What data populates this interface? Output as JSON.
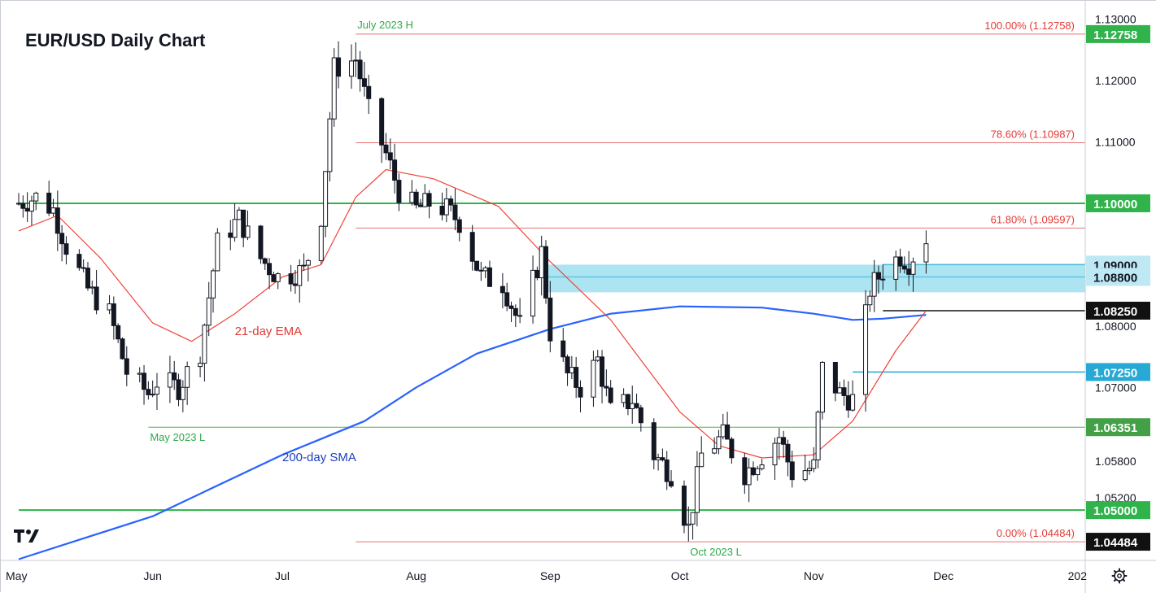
{
  "chart_data": {
    "type": "candlestick",
    "title": "EUR/USD Daily Chart",
    "ylim": [
      1.0418,
      1.133
    ],
    "y_ticks": [
      "1.13000",
      "1.12000",
      "1.11000",
      "1.08000",
      "1.07000",
      "1.05800",
      "1.05200"
    ],
    "x_ticks": [
      {
        "label": "May",
        "date": "2023-05-01"
      },
      {
        "label": "Jun",
        "date": "2023-06-01"
      },
      {
        "label": "Jul",
        "date": "2023-07-01"
      },
      {
        "label": "Aug",
        "date": "2023-08-01"
      },
      {
        "label": "Sep",
        "date": "2023-09-01"
      },
      {
        "label": "Oct",
        "date": "2023-10-01"
      },
      {
        "label": "Nov",
        "date": "2023-11-01"
      },
      {
        "label": "Dec",
        "date": "2023-12-01"
      },
      {
        "label": "202",
        "date": "2024-01-01"
      }
    ],
    "x_range": [
      "2023-05-01",
      "2023-12-31"
    ],
    "candles": [],
    "sma200": [
      {
        "date": "2023-05-01",
        "value": 1.042
      },
      {
        "date": "2023-06-01",
        "value": 1.049
      },
      {
        "date": "2023-07-01",
        "value": 1.059
      },
      {
        "date": "2023-07-20",
        "value": 1.0645
      },
      {
        "date": "2023-08-01",
        "value": 1.07
      },
      {
        "date": "2023-08-15",
        "value": 1.0755
      },
      {
        "date": "2023-09-01",
        "value": 1.0795
      },
      {
        "date": "2023-09-15",
        "value": 1.082
      },
      {
        "date": "2023-10-01",
        "value": 1.0832
      },
      {
        "date": "2023-10-20",
        "value": 1.083
      },
      {
        "date": "2023-11-01",
        "value": 1.082
      },
      {
        "date": "2023-11-10",
        "value": 1.081
      },
      {
        "date": "2023-11-17",
        "value": 1.0812
      },
      {
        "date": "2023-11-27",
        "value": 1.0818
      }
    ],
    "ema21": [
      {
        "date": "2023-05-01",
        "value": 1.0955
      },
      {
        "date": "2023-05-10",
        "value": 1.098
      },
      {
        "date": "2023-05-20",
        "value": 1.091
      },
      {
        "date": "2023-06-01",
        "value": 1.0805
      },
      {
        "date": "2023-06-10",
        "value": 1.0775
      },
      {
        "date": "2023-06-20",
        "value": 1.082
      },
      {
        "date": "2023-07-01",
        "value": 1.088
      },
      {
        "date": "2023-07-10",
        "value": 1.09
      },
      {
        "date": "2023-07-18",
        "value": 1.101
      },
      {
        "date": "2023-07-25",
        "value": 1.1055
      },
      {
        "date": "2023-08-05",
        "value": 1.104
      },
      {
        "date": "2023-08-20",
        "value": 1.0995
      },
      {
        "date": "2023-09-01",
        "value": 1.0905
      },
      {
        "date": "2023-09-15",
        "value": 1.081
      },
      {
        "date": "2023-10-01",
        "value": 1.066
      },
      {
        "date": "2023-10-10",
        "value": 1.0605
      },
      {
        "date": "2023-10-20",
        "value": 1.0585
      },
      {
        "date": "2023-11-01",
        "value": 1.059
      },
      {
        "date": "2023-11-10",
        "value": 1.0645
      },
      {
        "date": "2023-11-20",
        "value": 1.076
      },
      {
        "date": "2023-11-27",
        "value": 1.0825
      }
    ],
    "levels": [
      {
        "name": "100.00% (1.12758)",
        "value": 1.12758,
        "badge": "1.12758",
        "kind": "fib",
        "from": "2023-07-18"
      },
      {
        "name": "78.60% (1.10987)",
        "value": 1.10987,
        "badge": "",
        "kind": "fib",
        "from": "2023-07-18"
      },
      {
        "name": "",
        "value": 1.1,
        "badge": "1.10000",
        "kind": "green-bold",
        "from": "2023-05-01"
      },
      {
        "name": "61.80% (1.09597)",
        "value": 1.09597,
        "badge": "",
        "kind": "fib",
        "from": "2023-07-18"
      },
      {
        "name": "",
        "value": 1.09,
        "badge": "1.09000",
        "kind": "cyan-zone-top",
        "from": "2023-11-17"
      },
      {
        "name": "",
        "value": 1.088,
        "badge": "1.08800",
        "kind": "cyan-mid",
        "from": "2023-08-31"
      },
      {
        "name": "",
        "value": 1.0825,
        "badge": "1.08250",
        "kind": "black",
        "from": "2023-11-17"
      },
      {
        "name": "",
        "value": 1.0725,
        "badge": "1.07250",
        "kind": "cyan",
        "from": "2023-11-10"
      },
      {
        "name": "",
        "value": 1.06351,
        "badge": "1.06351",
        "kind": "green",
        "from": "2023-05-31"
      },
      {
        "name": "",
        "value": 1.05,
        "badge": "1.05000",
        "kind": "green-bold",
        "from": "2023-05-01"
      },
      {
        "name": "0.00% (1.04484)",
        "value": 1.04484,
        "badge": "1.04484",
        "kind": "fib",
        "from": "2023-07-18"
      }
    ],
    "zone": {
      "from_date": "2023-08-31",
      "low": 1.0855,
      "high": 1.09
    },
    "annotations": [
      {
        "text": "July 2023 H",
        "date": "2023-07-18",
        "value": 1.12758,
        "pos": "above"
      },
      {
        "text": "May 2023 L",
        "date": "2023-05-31",
        "value": 1.06351,
        "pos": "below"
      },
      {
        "text": "Oct 2023 L",
        "date": "2023-10-03",
        "value": 1.04484,
        "pos": "below"
      }
    ],
    "series_labels": [
      {
        "text": "21-day EMA",
        "date": "2023-06-20",
        "value": 1.0785
      },
      {
        "text": "200-day SMA",
        "date": "2023-07-01",
        "value": 1.058
      }
    ]
  }
}
